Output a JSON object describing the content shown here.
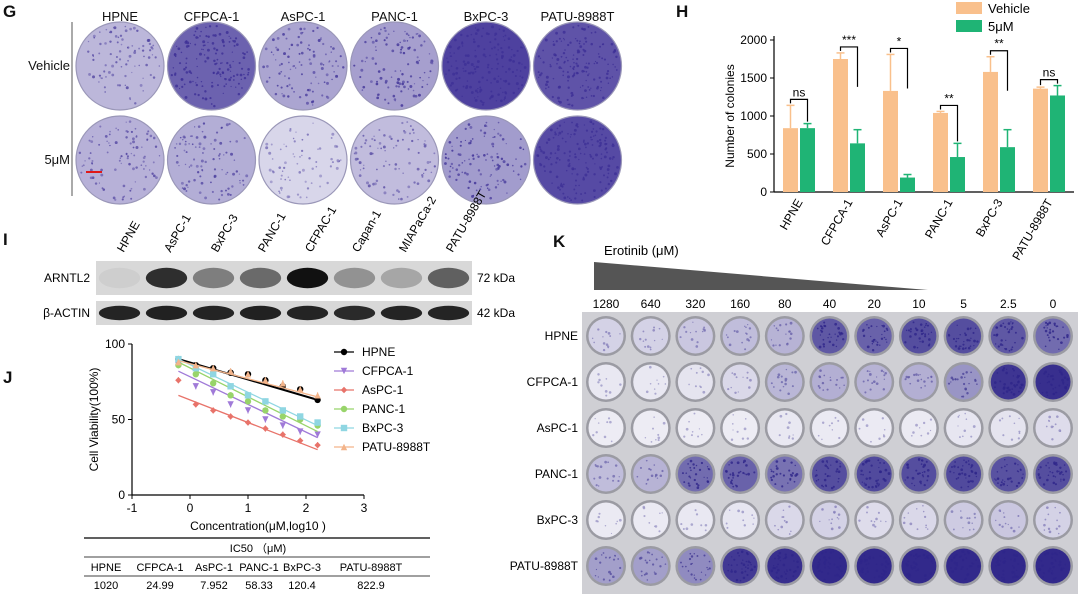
{
  "panels": {
    "G": "G",
    "H": "H",
    "I": "I",
    "J": "J",
    "K": "K"
  },
  "panel_g": {
    "cell_lines": [
      "HPNE",
      "CFPCA-1",
      "AsPC-1",
      "PANC-1",
      "BxPC-3",
      "PATU-8988T"
    ],
    "rows": [
      "Vehicle",
      "5μM"
    ],
    "colors": {
      "dark": "#3d2f96",
      "light": "#e6e4f1"
    },
    "density": [
      [
        0.25,
        0.72,
        0.35,
        0.38,
        0.9,
        0.8
      ],
      [
        0.28,
        0.3,
        0.08,
        0.22,
        0.4,
        0.85
      ]
    ]
  },
  "chart_data": [
    {
      "type": "bar",
      "panel": "H",
      "categories": [
        "HPNE",
        "CFPCA-1",
        "AsPC-1",
        "PANC-1",
        "BxPC-3",
        "PATU-8988T"
      ],
      "series": [
        {
          "name": "Vehicle",
          "color": "#f9c08c",
          "values": [
            840,
            1750,
            1330,
            1040,
            1580,
            1360
          ],
          "errors": [
            300,
            80,
            480,
            20,
            200,
            20
          ]
        },
        {
          "name": "5μM",
          "color": "#1fb475",
          "values": [
            840,
            640,
            190,
            460,
            590,
            1270
          ],
          "errors": [
            60,
            180,
            40,
            180,
            230,
            130
          ]
        }
      ],
      "significance": [
        "ns",
        "***",
        "*",
        "**",
        "**",
        "ns"
      ],
      "ylabel": "Number of colonies",
      "ylim": [
        0,
        2000
      ],
      "yticks": [
        0,
        500,
        1000,
        1500,
        2000
      ],
      "legend": "top-right"
    },
    {
      "type": "scatter",
      "panel": "J",
      "xlabel": "Concentration(μM,log10 )",
      "ylabel": "Cell Viability(100%)",
      "xlim": [
        -1,
        3
      ],
      "ylim": [
        0,
        100
      ],
      "xticks": [
        -1,
        0,
        1,
        2,
        3
      ],
      "yticks": [
        0,
        50,
        100
      ],
      "x": [
        -0.2,
        0.1,
        0.4,
        0.7,
        1.0,
        1.3,
        1.6,
        1.9,
        2.2
      ],
      "series": [
        {
          "name": "HPNE",
          "color": "#000000",
          "marker": "circle",
          "values": [
            90,
            86,
            84,
            81,
            80,
            76,
            72,
            70,
            63
          ],
          "fit": [
            90,
            63
          ]
        },
        {
          "name": "CFPCA-1",
          "color": "#a07ad8",
          "marker": "triangle-down",
          "values": [
            86,
            72,
            68,
            60,
            56,
            50,
            46,
            42,
            40
          ],
          "fit": [
            82,
            38
          ]
        },
        {
          "name": "AsPC-1",
          "color": "#e8736a",
          "marker": "diamond",
          "values": [
            76,
            60,
            56,
            52,
            48,
            44,
            40,
            36,
            33
          ],
          "fit": [
            66,
            30
          ]
        },
        {
          "name": "PANC-1",
          "color": "#98d46a",
          "marker": "circle",
          "values": [
            86,
            80,
            74,
            66,
            62,
            56,
            52,
            50,
            46
          ],
          "fit": [
            88,
            42
          ]
        },
        {
          "name": "BxPC-3",
          "color": "#8fd6e2",
          "marker": "square",
          "values": [
            90,
            84,
            80,
            72,
            66,
            62,
            56,
            52,
            48
          ],
          "fit": [
            90,
            46
          ]
        },
        {
          "name": "PATU-8988T",
          "color": "#f3b48a",
          "marker": "triangle-up",
          "values": [
            88,
            86,
            84,
            82,
            80,
            76,
            74,
            70,
            66
          ],
          "fit": [
            89,
            65
          ]
        }
      ],
      "legend": "right"
    }
  ],
  "panel_i": {
    "lanes": [
      "HPNE",
      "AsPC-1",
      "BxPC-3",
      "PANC-1",
      "CFPAC-1",
      "Capan-1",
      "MIAPaCa-2",
      "PATU-8988T"
    ],
    "bands": [
      {
        "name": "ARNTL2",
        "kda": "72 kDa",
        "intensity": [
          0.05,
          0.85,
          0.45,
          0.55,
          1.0,
          0.35,
          0.25,
          0.6
        ]
      },
      {
        "name": "β-ACTIN",
        "kda": "42 kDa",
        "intensity": [
          0.9,
          0.92,
          0.9,
          0.92,
          0.9,
          0.88,
          0.9,
          0.9
        ]
      }
    ]
  },
  "panel_j_table": {
    "title": "IC50 （μM)",
    "headers": [
      "HPNE",
      "CFPCA-1",
      "AsPC-1",
      "PANC-1",
      "BxPC-3",
      "PATU-8988T"
    ],
    "values": [
      "1020",
      "24.99",
      "7.952",
      "58.33",
      "120.4",
      "822.9"
    ]
  },
  "panel_k": {
    "title": "Erotinib (μM)",
    "concentrations": [
      "1280",
      "640",
      "320",
      "160",
      "80",
      "40",
      "20",
      "10",
      "5",
      "2.5",
      "0"
    ],
    "rows": [
      "HPNE",
      "CFPCA-1",
      "AsPC-1",
      "PANC-1",
      "BxPC-3",
      "PATU-8988T"
    ],
    "density": [
      [
        0.15,
        0.15,
        0.2,
        0.25,
        0.3,
        0.75,
        0.7,
        0.8,
        0.8,
        0.75,
        0.65
      ],
      [
        0.04,
        0.04,
        0.06,
        0.12,
        0.28,
        0.32,
        0.3,
        0.32,
        0.45,
        0.92,
        0.95
      ],
      [
        0.02,
        0.02,
        0.02,
        0.02,
        0.04,
        0.03,
        0.03,
        0.03,
        0.05,
        0.06,
        0.1
      ],
      [
        0.25,
        0.3,
        0.65,
        0.7,
        0.62,
        0.8,
        0.82,
        0.8,
        0.82,
        0.78,
        0.8
      ],
      [
        0.03,
        0.03,
        0.04,
        0.05,
        0.12,
        0.15,
        0.1,
        0.12,
        0.18,
        0.2,
        0.15
      ],
      [
        0.4,
        0.4,
        0.5,
        0.9,
        0.95,
        0.98,
        0.98,
        0.98,
        0.98,
        0.98,
        0.98
      ]
    ]
  }
}
